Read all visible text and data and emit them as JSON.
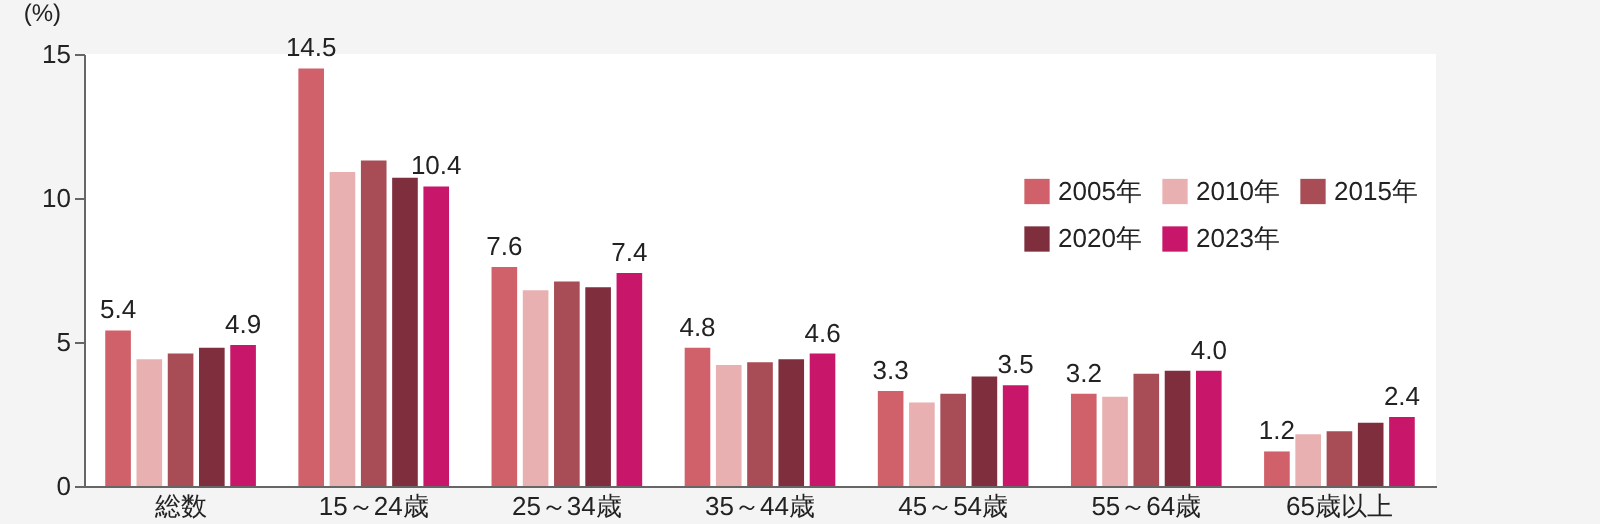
{
  "chart_data": {
    "type": "bar",
    "ylabel": "(%)",
    "categories": [
      "総数",
      "15～24歳",
      "25～34歳",
      "35～44歳",
      "45～54歳",
      "55～64歳",
      "65歳以上"
    ],
    "series": [
      {
        "name": "2005年",
        "color": "#d0606a",
        "values": [
          5.4,
          14.5,
          7.6,
          4.8,
          3.3,
          3.2,
          1.2
        ],
        "value_labels": [
          "5.4",
          "14.5",
          "7.6",
          "4.8",
          "3.3",
          "3.2",
          "1.2"
        ]
      },
      {
        "name": "2010年",
        "color": "#e8b0b0",
        "values": [
          4.4,
          10.9,
          6.8,
          4.2,
          2.9,
          3.1,
          1.8
        ]
      },
      {
        "name": "2015年",
        "color": "#a84c56",
        "values": [
          4.6,
          11.3,
          7.1,
          4.3,
          3.2,
          3.9,
          1.9
        ]
      },
      {
        "name": "2020年",
        "color": "#7e2e3c",
        "values": [
          4.8,
          10.7,
          6.9,
          4.4,
          3.8,
          4.0,
          2.2
        ]
      },
      {
        "name": "2023年",
        "color": "#c8166a",
        "values": [
          4.9,
          10.4,
          7.4,
          4.6,
          3.5,
          4.0,
          2.4
        ],
        "value_labels": [
          "4.9",
          "10.4",
          "7.4",
          "4.6",
          "3.5",
          "4.0",
          "2.4"
        ]
      }
    ],
    "ylim": [
      0,
      15
    ],
    "yticks": [
      0,
      5,
      10,
      15
    ],
    "grid": false,
    "legend": "top right"
  }
}
